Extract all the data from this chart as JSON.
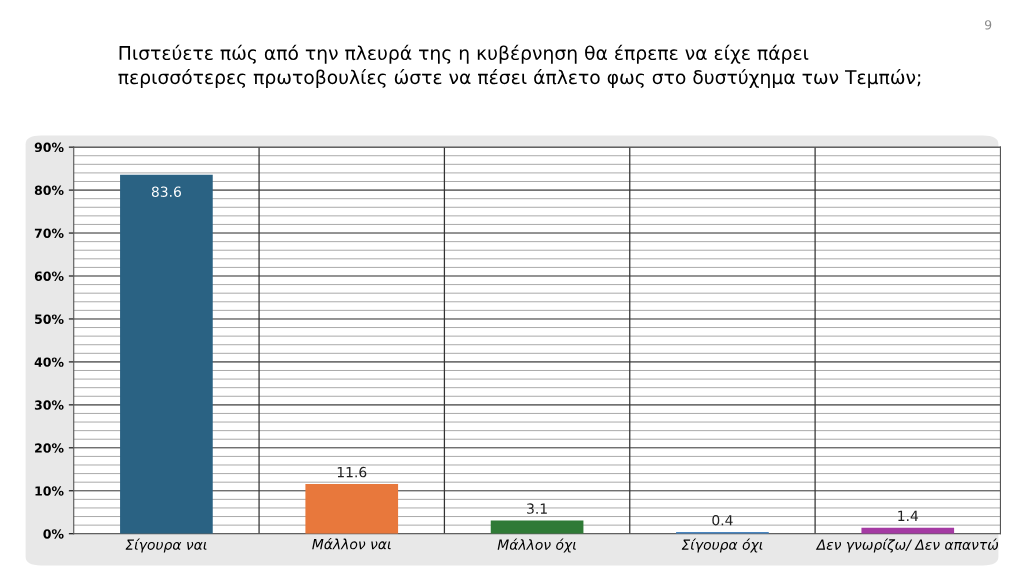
{
  "chart_data": {
    "type": "bar",
    "title": "Πιστεύετε πώς από την πλευρά της η κυβέρνηση θα έπρεπε να είχε πάρει\nπερισσότερες πρωτοβουλίες ώστε να πέσει άπλετο φως στο δυστύχημα των Τεμπών;",
    "categories": [
      "Σίγουρα ναι",
      "Μάλλον ναι",
      "Μάλλον όχι",
      "Σίγουρα όχι",
      "Δεν γνωρίζω/ Δεν απαντώ"
    ],
    "values": [
      83.6,
      11.6,
      3.1,
      0.4,
      1.4
    ],
    "colors": [
      "#2a6283",
      "#e8783c",
      "#2f7a36",
      "#4a86c0",
      "#a43aa3"
    ],
    "data_labels": true,
    "ylim": [
      0,
      90
    ],
    "yticks": [
      {
        "value": 0,
        "label": "0%"
      },
      {
        "value": 10,
        "label": "10%"
      },
      {
        "value": 20,
        "label": "20%"
      },
      {
        "value": 30,
        "label": "30%"
      },
      {
        "value": 40,
        "label": "40%"
      },
      {
        "value": 50,
        "label": "50%"
      },
      {
        "value": 60,
        "label": "60%"
      },
      {
        "value": 70,
        "label": "70%"
      },
      {
        "value": 80,
        "label": "80%"
      },
      {
        "value": 90,
        "label": "90%"
      }
    ],
    "grid": "y",
    "annotations": [
      "9"
    ]
  }
}
